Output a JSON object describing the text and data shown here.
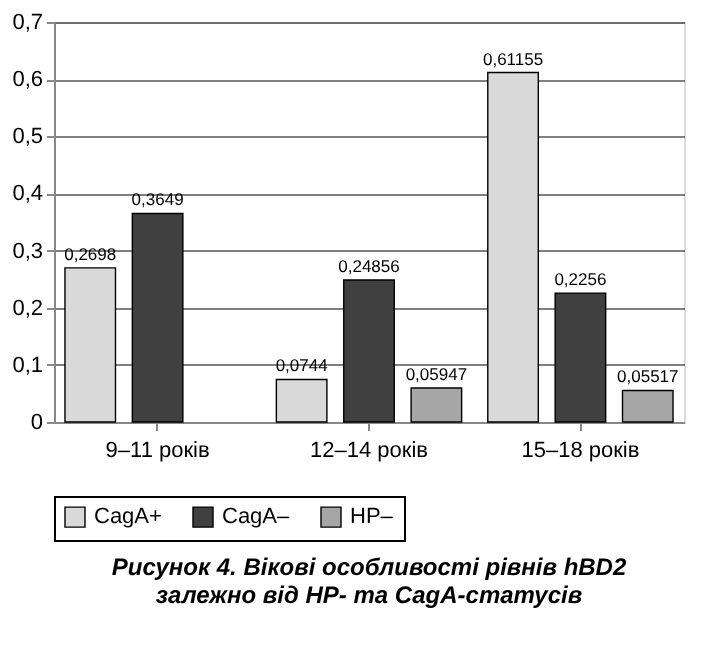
{
  "chart_data": {
    "type": "bar",
    "categories": [
      "9–11 років",
      "12–14 років",
      "15–18 років"
    ],
    "series": [
      {
        "name": "CagA+",
        "color": "#d9d9d9",
        "values": [
          0.2698,
          0.0744,
          0.61155
        ],
        "value_labels": [
          "0,2698",
          "0,0744",
          "0,61155"
        ]
      },
      {
        "name": "CagA–",
        "color": "#404040",
        "values": [
          0.3649,
          0.24856,
          0.2256
        ],
        "value_labels": [
          "0,3649",
          "0,24856",
          "0,2256"
        ]
      },
      {
        "name": "HP–",
        "color": "#a6a6a6",
        "values": [
          null,
          0.05947,
          0.05517
        ],
        "value_labels": [
          null,
          "0,05947",
          "0,05517"
        ]
      }
    ],
    "ylim": [
      0,
      0.7
    ],
    "yticks": [
      0,
      {
        "value": 0.1,
        "label": "0,1"
      },
      {
        "value": 0.2,
        "label": "0,2"
      },
      {
        "value": 0.3,
        "label": "0,3"
      },
      {
        "value": 0.4,
        "label": "0,4"
      },
      {
        "value": 0.5,
        "label": "0,5"
      },
      {
        "value": 0.6,
        "label": "0,6"
      },
      {
        "value": 0.7,
        "label": "0,7"
      }
    ],
    "grid": "y",
    "legend": "bottom",
    "annotations": [
      "Рисунок 4. Вікові особливості рівнів hBD2",
      "залежно від HP- та CagA-статусів"
    ]
  }
}
